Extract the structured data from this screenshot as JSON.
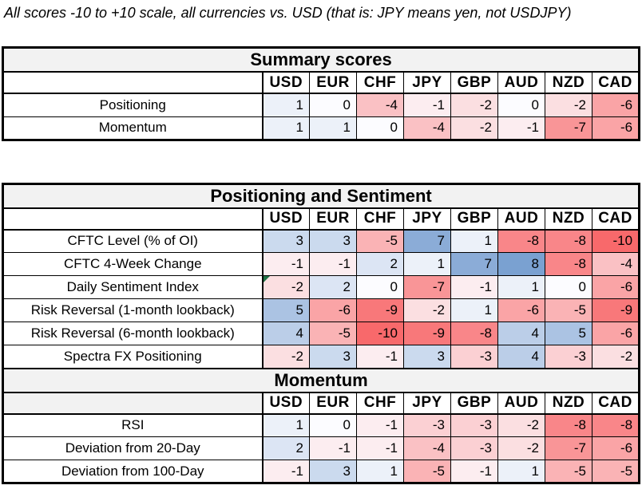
{
  "caption": "All scores -10 to +10 scale, all currencies vs. USD (that is: JPY means yen, not USDJPY)",
  "scale": {
    "min": -10,
    "max": 10
  },
  "colors": {
    "negative_end": "#F8696B",
    "zero": "#FCFCFF",
    "positive_end": "#5A8AC6",
    "section_title_bg": "#F2F2F2",
    "grid_border": "#000000",
    "comment_marker": "#1E7145",
    "page_bg": "#FFFFFF",
    "text": "#000000"
  },
  "currencies": [
    "USD",
    "EUR",
    "CHF",
    "JPY",
    "GBP",
    "AUD",
    "NZD",
    "CAD"
  ],
  "layout_blocks": [
    [
      0
    ],
    [
      1,
      2
    ]
  ],
  "chart_data": [
    {
      "type": "heatmap",
      "title": "Summary scores",
      "categories": [
        "USD",
        "EUR",
        "CHF",
        "JPY",
        "GBP",
        "AUD",
        "NZD",
        "CAD"
      ],
      "header_label_shaded": false,
      "rows": [
        {
          "label": "Positioning",
          "values": [
            1,
            0,
            -4,
            -1,
            -2,
            0,
            -2,
            -6
          ]
        },
        {
          "label": "Momentum",
          "values": [
            1,
            1,
            0,
            -4,
            -2,
            -1,
            -7,
            -6
          ]
        }
      ]
    },
    {
      "type": "heatmap",
      "title": "Positioning and Sentiment",
      "categories": [
        "USD",
        "EUR",
        "CHF",
        "JPY",
        "GBP",
        "AUD",
        "NZD",
        "CAD"
      ],
      "header_label_shaded": false,
      "rows": [
        {
          "label": "CFTC Level (% of OI)",
          "values": [
            3,
            3,
            -5,
            7,
            1,
            -8,
            -8,
            -10
          ]
        },
        {
          "label": "CFTC 4-Week Change",
          "values": [
            -1,
            -1,
            2,
            1,
            7,
            8,
            -8,
            -4
          ]
        },
        {
          "label": "Daily Sentiment Index",
          "values": [
            -2,
            2,
            0,
            -7,
            -1,
            1,
            0,
            -6
          ],
          "comment_marker_col": 0
        },
        {
          "label": "Risk Reversal (1-month lookback)",
          "values": [
            5,
            -6,
            -9,
            -2,
            1,
            -6,
            -5,
            -9
          ]
        },
        {
          "label": "Risk Reversal (6-month lookback)",
          "values": [
            4,
            -5,
            -10,
            -9,
            -8,
            4,
            5,
            -6
          ]
        },
        {
          "label": "Spectra FX Positioning",
          "values": [
            -2,
            3,
            -1,
            3,
            -3,
            4,
            -3,
            -2
          ]
        }
      ]
    },
    {
      "type": "heatmap",
      "title": "Momentum",
      "categories": [
        "USD",
        "EUR",
        "CHF",
        "JPY",
        "GBP",
        "AUD",
        "NZD",
        "CAD"
      ],
      "header_label_shaded": true,
      "rows": [
        {
          "label": "RSI",
          "values": [
            1,
            0,
            -1,
            -3,
            -3,
            -2,
            -8,
            -8
          ]
        },
        {
          "label": "Deviation from 20-Day",
          "values": [
            2,
            -1,
            -1,
            -4,
            -3,
            -2,
            -7,
            -6
          ]
        },
        {
          "label": "Deviation from 100-Day",
          "values": [
            -1,
            3,
            1,
            -5,
            -1,
            1,
            -5,
            -5
          ]
        }
      ]
    }
  ]
}
